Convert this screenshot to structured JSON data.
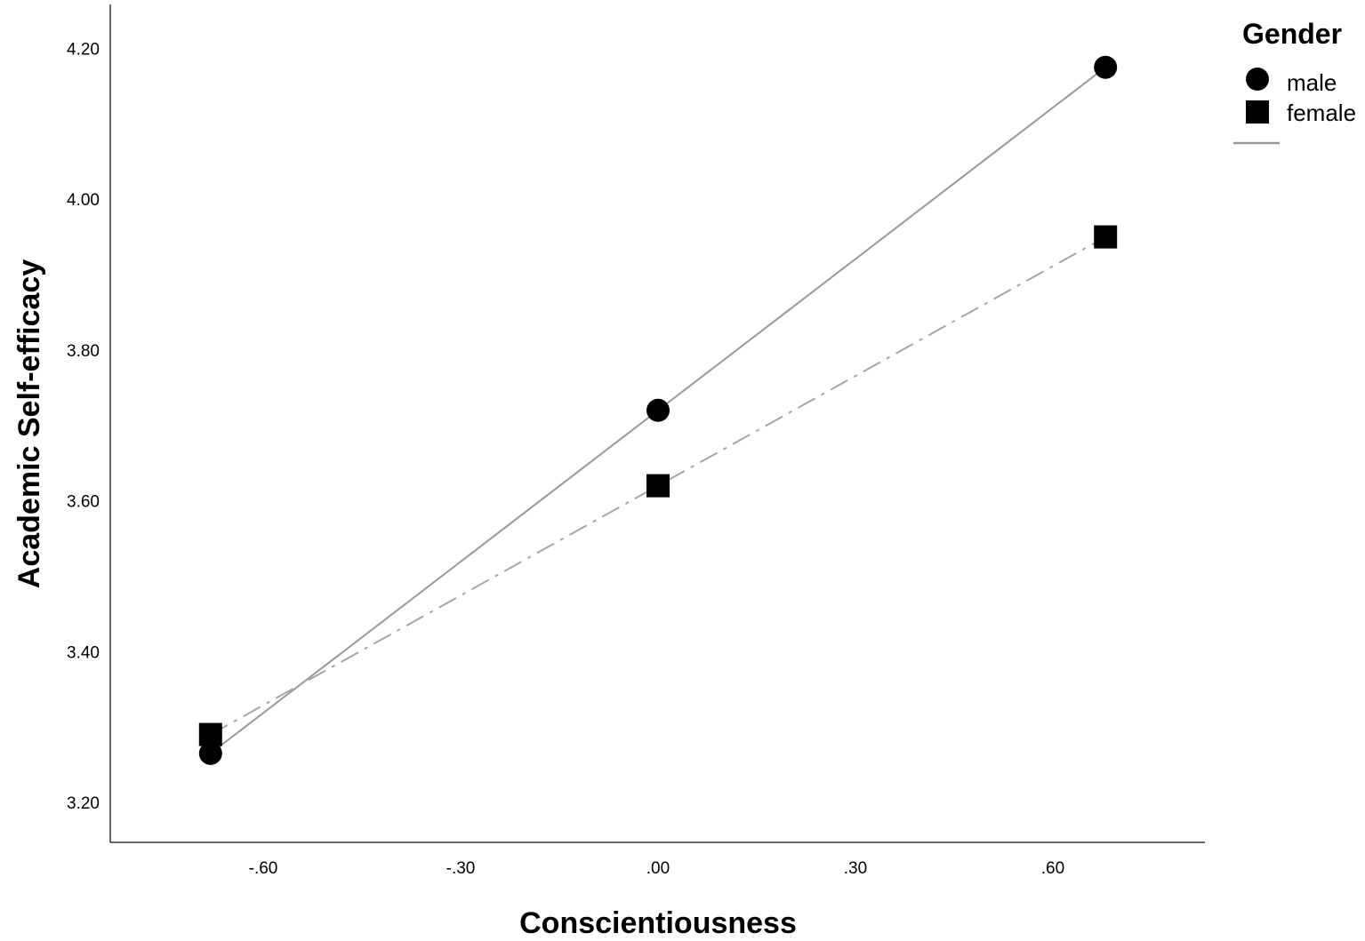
{
  "chart_data": {
    "type": "line",
    "title": "",
    "xlabel": "Conscientiousness",
    "ylabel": "Academic Self-efficacy",
    "xlim": [
      -0.8,
      0.83
    ],
    "ylim": [
      3.15,
      4.26
    ],
    "x_ticks": [
      -0.6,
      -0.3,
      0.0,
      0.3,
      0.6
    ],
    "x_tick_labels": [
      "-.60",
      "-.30",
      ".00",
      ".30",
      ".60"
    ],
    "y_ticks": [
      3.2,
      3.4,
      3.6,
      3.8,
      4.0,
      4.2
    ],
    "y_tick_labels": [
      "3.20",
      "3.40",
      "3.60",
      "3.80",
      "4.00",
      "4.20"
    ],
    "grid": false,
    "legend": {
      "title": "Gender",
      "position": "top-right, outside plot"
    },
    "series": [
      {
        "name": "male",
        "marker": "circle",
        "line_style": "solid",
        "color": "#999999",
        "marker_color": "#000000",
        "x": [
          -0.68,
          0.0,
          0.68
        ],
        "y": [
          3.265,
          3.72,
          4.175
        ]
      },
      {
        "name": "female",
        "marker": "square",
        "line_style": "dash-dot",
        "color": "#a6a6a6",
        "marker_color": "#000000",
        "x": [
          -0.68,
          0.0,
          0.68
        ],
        "y": [
          3.29,
          3.62,
          3.95
        ]
      }
    ]
  }
}
